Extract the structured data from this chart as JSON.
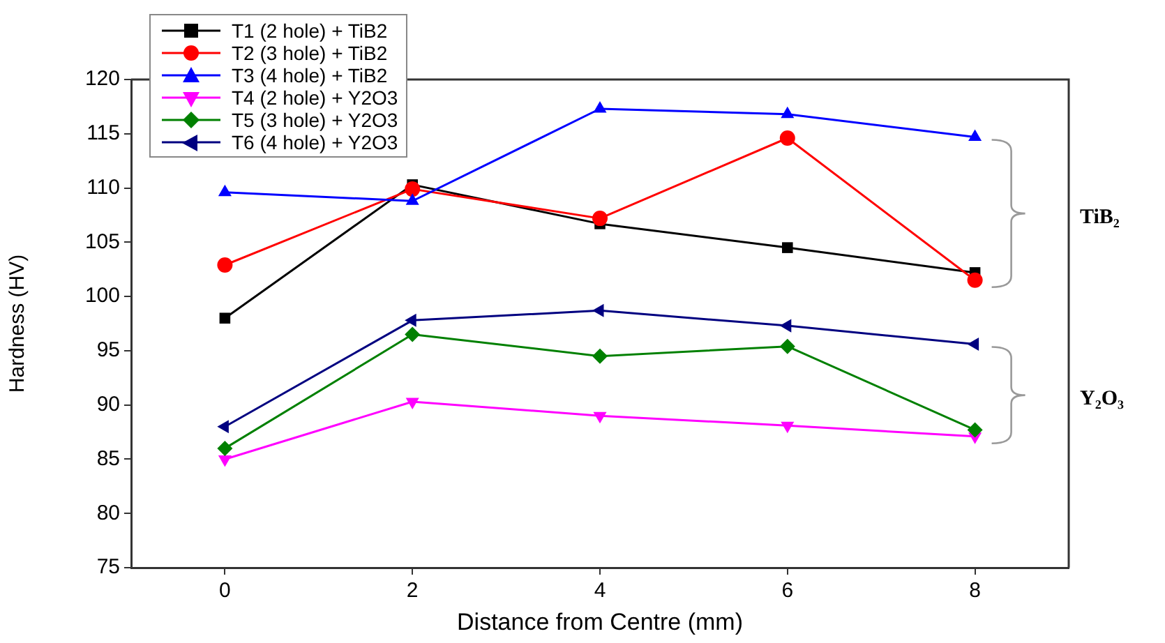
{
  "chart_data": {
    "type": "line",
    "xlabel": "Distance from Centre (mm)",
    "ylabel": "Hardness (HV)",
    "x": [
      0,
      2,
      4,
      6,
      8
    ],
    "series": [
      {
        "name": "T1 (2 hole) + TiB2",
        "color": "#000000",
        "marker": "square",
        "values": [
          98.0,
          110.3,
          106.7,
          104.5,
          102.2
        ]
      },
      {
        "name": "T2 (3 hole) + TiB2",
        "color": "#ff0000",
        "marker": "circle",
        "values": [
          102.9,
          109.9,
          107.2,
          114.6,
          101.5
        ]
      },
      {
        "name": "T3 (4 hole) + TiB2",
        "color": "#0000ff",
        "marker": "triangle",
        "values": [
          109.6,
          108.8,
          117.3,
          116.8,
          114.7
        ]
      },
      {
        "name": "T4 (2 hole) + Y2O3",
        "color": "#ff00ff",
        "marker": "triangle-down",
        "values": [
          85.0,
          90.3,
          89.0,
          88.1,
          87.1
        ]
      },
      {
        "name": "T5 (3 hole) + Y2O3",
        "color": "#008000",
        "marker": "diamond",
        "values": [
          86.0,
          96.5,
          94.5,
          95.4,
          87.7
        ]
      },
      {
        "name": "T6 (4 hole) + Y2O3",
        "color": "#000080",
        "marker": "triangle-left",
        "values": [
          88.0,
          97.8,
          98.7,
          97.3,
          95.6
        ]
      }
    ],
    "xlim": [
      -1,
      9
    ],
    "xticks": [
      0,
      2,
      4,
      6,
      8
    ],
    "ylim": [
      75,
      120
    ],
    "yticks": [
      75,
      80,
      85,
      90,
      95,
      100,
      105,
      110,
      115,
      120
    ],
    "grid": false,
    "legend": "top left",
    "line_style": "solid",
    "annotations": [
      "TiB₂",
      "Y₂O₃"
    ]
  }
}
